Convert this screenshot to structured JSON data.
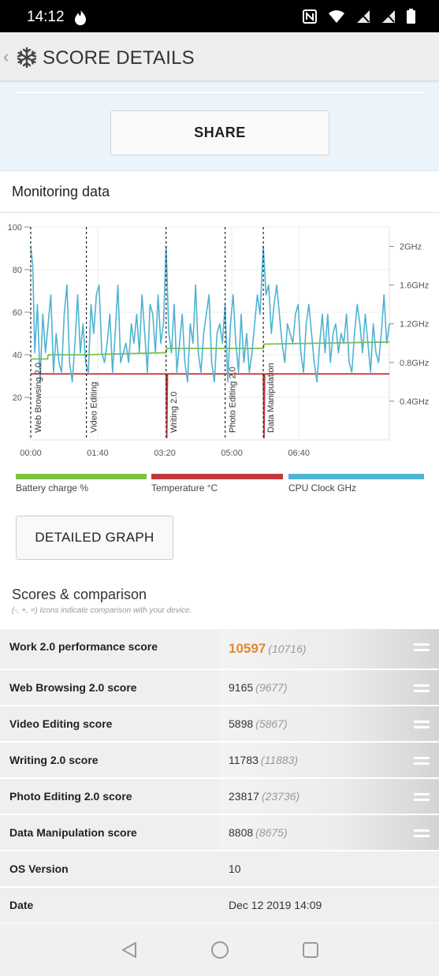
{
  "status_bar": {
    "time": "14:12"
  },
  "app_bar": {
    "title": "SCORE DETAILS"
  },
  "share": {
    "label": "SHARE"
  },
  "monitoring": {
    "title": "Monitoring data"
  },
  "legend": [
    {
      "label": "Battery charge %",
      "color": "#7cc242"
    },
    {
      "label": "Temperature °C",
      "color": "#c0393b"
    },
    {
      "label": "CPU Clock GHz",
      "color": "#4fb3d2"
    }
  ],
  "detailed_graph": {
    "label": "DETAILED GRAPH"
  },
  "scores": {
    "title": "Scores & comparison",
    "subtitle": "(-, +, =) Icons indicate comparison with your device.",
    "rows": [
      {
        "label": "Work 2.0 performance score",
        "value": "10597",
        "compare": "(10716)",
        "icon": "equal-icon"
      },
      {
        "label": "Web Browsing 2.0 score",
        "value": "9165",
        "compare": "(9677)",
        "icon": "equal-icon"
      },
      {
        "label": "Video Editing score",
        "value": "5898",
        "compare": "(5867)",
        "icon": "equal-icon"
      },
      {
        "label": "Writing 2.0 score",
        "value": "11783",
        "compare": "(11883)",
        "icon": "equal-icon"
      },
      {
        "label": "Photo Editing 2.0 score",
        "value": "23817",
        "compare": "(23736)",
        "icon": "equal-icon"
      },
      {
        "label": "Data Manipulation score",
        "value": "8808",
        "compare": "(8675)",
        "icon": "equal-icon"
      }
    ],
    "info": [
      {
        "label": "OS Version",
        "value": "10"
      },
      {
        "label": "Date",
        "value": "Dec 12 2019 14:09"
      }
    ]
  },
  "chart_data": {
    "type": "line",
    "title": "",
    "x_ticks": [
      "00:00",
      "01:40",
      "03:20",
      "05:00",
      "06:40"
    ],
    "y_left_ticks": [
      "20",
      "40",
      "60",
      "80",
      "100"
    ],
    "y_right_ticks": [
      "0.4GHz",
      "0.8GHz",
      "1.2GHz",
      "1.6GHz",
      "2GHz"
    ],
    "ylim_left": [
      0,
      100
    ],
    "ylim_right_ghz": [
      0,
      2.2
    ],
    "grid": true,
    "xlim_seconds": [
      0,
      535
    ],
    "sections": [
      {
        "label": "Web Browsing 2.0",
        "start_s": 0
      },
      {
        "label": "Video Editing",
        "start_s": 83
      },
      {
        "label": "Writing 2.0",
        "start_s": 202
      },
      {
        "label": "Photo Editing 2.0",
        "start_s": 290
      },
      {
        "label": "Data Manipulation",
        "start_s": 347
      }
    ],
    "series": [
      {
        "name": "Battery charge %",
        "x": [
          0,
          25,
          26,
          83,
          202,
          203,
          347,
          348,
          535
        ],
        "y": [
          38,
          38,
          40,
          40,
          41,
          43,
          43,
          45,
          46
        ]
      },
      {
        "name": "Temperature °C",
        "x": [
          0,
          202,
          203,
          204,
          347,
          348,
          349,
          535
        ],
        "y": [
          31,
          31,
          1,
          31,
          31,
          1,
          31,
          31
        ]
      },
      {
        "name": "CPU Clock GHz",
        "x": [
          0,
          3,
          6,
          10,
          14,
          18,
          22,
          26,
          30,
          34,
          38,
          42,
          46,
          50,
          54,
          58,
          62,
          66,
          70,
          74,
          78,
          82,
          86,
          90,
          94,
          98,
          102,
          106,
          110,
          114,
          118,
          122,
          126,
          130,
          134,
          138,
          142,
          146,
          150,
          154,
          158,
          162,
          166,
          170,
          174,
          178,
          182,
          186,
          190,
          194,
          198,
          202,
          206,
          210,
          214,
          218,
          222,
          226,
          230,
          234,
          238,
          242,
          246,
          250,
          254,
          258,
          262,
          266,
          270,
          274,
          278,
          282,
          286,
          290,
          294,
          298,
          302,
          306,
          310,
          314,
          318,
          322,
          326,
          330,
          334,
          338,
          342,
          347,
          351,
          355,
          359,
          363,
          367,
          371,
          375,
          379,
          383,
          387,
          391,
          395,
          399,
          403,
          407,
          411,
          415,
          419,
          423,
          427,
          431,
          435,
          439,
          443,
          447,
          451,
          455,
          459,
          463,
          467,
          471,
          475,
          479,
          483,
          487,
          491,
          495,
          499,
          503,
          507,
          511,
          515,
          519,
          523,
          527,
          531,
          535
        ],
        "y": [
          2.0,
          1.8,
          0.9,
          1.4,
          0.6,
          1.3,
          0.9,
          1.2,
          1.5,
          0.7,
          1.1,
          0.8,
          0.7,
          1.3,
          1.6,
          0.8,
          0.6,
          1.0,
          1.5,
          0.9,
          1.2,
          0.8,
          0.7,
          1.4,
          1.1,
          1.5,
          1.6,
          0.9,
          0.8,
          1.0,
          1.3,
          0.7,
          1.1,
          1.6,
          0.8,
          0.9,
          1.0,
          0.8,
          1.2,
          1.0,
          1.3,
          0.9,
          1.5,
          1.1,
          0.7,
          1.4,
          1.3,
          0.9,
          1.5,
          1.0,
          1.2,
          2.0,
          1.1,
          0.9,
          1.4,
          0.7,
          1.0,
          1.3,
          0.8,
          0.6,
          1.2,
          1.0,
          1.6,
          0.9,
          0.7,
          1.1,
          1.3,
          1.5,
          0.8,
          0.6,
          1.1,
          1.2,
          1.0,
          1.4,
          0.6,
          1.2,
          1.5,
          1.0,
          0.7,
          1.3,
          0.8,
          1.1,
          0.7,
          0.9,
          1.2,
          1.5,
          1.3,
          2.0,
          1.5,
          1.6,
          1.1,
          1.4,
          1.6,
          1.3,
          1.0,
          0.8,
          1.2,
          1.1,
          1.0,
          1.3,
          1.4,
          0.9,
          0.7,
          1.2,
          1.4,
          1.1,
          0.8,
          0.6,
          1.0,
          1.3,
          0.9,
          1.3,
          0.8,
          1.1,
          1.2,
          0.9,
          1.1,
          1.0,
          1.3,
          0.8,
          0.7,
          1.1,
          1.4,
          1.2,
          0.9,
          1.3,
          1.0,
          0.7,
          1.2,
          0.9,
          0.8,
          1.1,
          1.5,
          1.0,
          1.2
        ]
      }
    ]
  }
}
